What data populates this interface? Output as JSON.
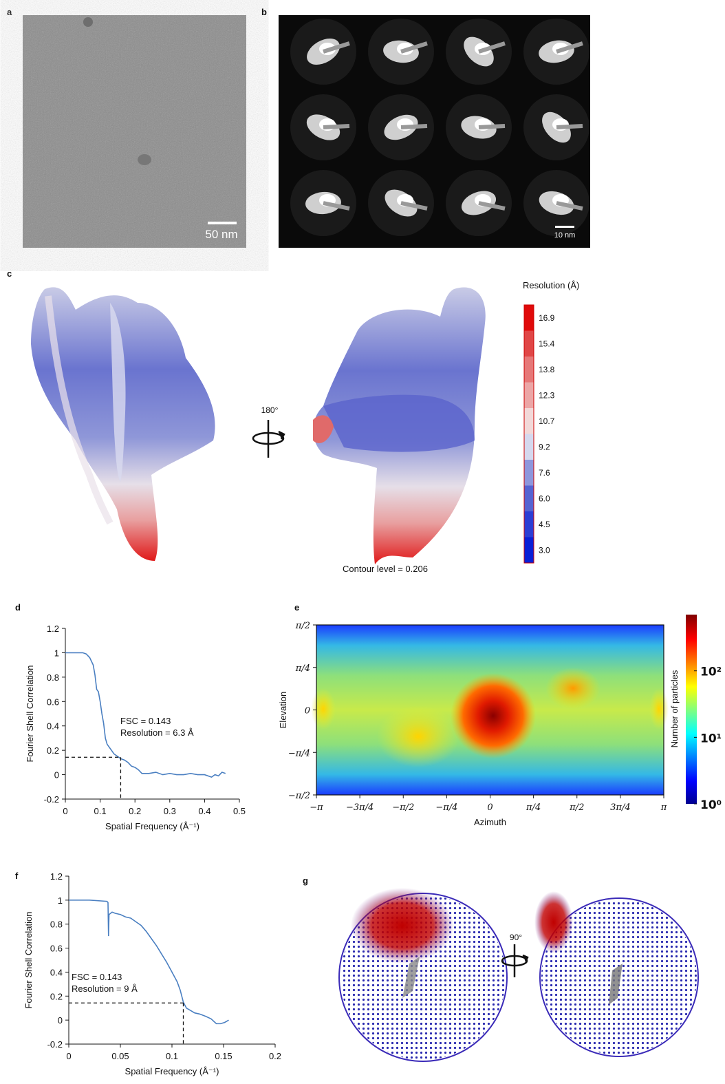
{
  "panels": {
    "a": {
      "label": "a",
      "scale_bar": "50 nm"
    },
    "b": {
      "label": "b",
      "scale_bar": "10 nm"
    },
    "c": {
      "label": "c",
      "rotation": "180°",
      "contour": "Contour level = 0.206",
      "colorbar": {
        "title": "Resolution (Å)",
        "ticks": [
          {
            "value": 3,
            "label": "3.0"
          },
          4.5,
          {
            "value": 6,
            "label": "6.0"
          },
          7.6,
          9.2,
          10.7,
          12.3,
          13.8,
          15.4,
          16.9
        ],
        "colors": [
          "#0a1fd6",
          "#2c3ed4",
          "#5563d2",
          "#8e96dc",
          "#d5d8ee",
          "#f2d8d8",
          "#eca6a6",
          "#e67878",
          "#e04646",
          "#e00a0a"
        ]
      }
    },
    "g": {
      "label": "g",
      "rotation": "90°"
    }
  },
  "chart_data": [
    {
      "type": "line",
      "label": "d",
      "ylabel": "Fourier Shell Correlation",
      "xlabel": "Spatial Frequency (Å⁻¹)",
      "color": "#4a7fc1",
      "x": [
        0,
        0.03,
        0.05,
        0.06,
        0.07,
        0.08,
        0.085,
        0.09,
        0.095,
        0.1,
        0.105,
        0.11,
        0.115,
        0.12,
        0.13,
        0.14,
        0.15,
        0.16,
        0.17,
        0.18,
        0.19,
        0.2,
        0.21,
        0.22,
        0.24,
        0.26,
        0.28,
        0.3,
        0.32,
        0.34,
        0.36,
        0.38,
        0.4,
        0.42,
        0.43,
        0.44,
        0.45,
        0.46
      ],
      "values": [
        1,
        1,
        1,
        0.99,
        0.96,
        0.9,
        0.82,
        0.7,
        0.68,
        0.6,
        0.5,
        0.42,
        0.3,
        0.25,
        0.21,
        0.17,
        0.15,
        0.13,
        0.12,
        0.1,
        0.07,
        0.06,
        0.04,
        0.01,
        0.01,
        0.02,
        0.0,
        0.01,
        0.0,
        0.0,
        0.01,
        0.0,
        0.0,
        -0.02,
        0.0,
        -0.01,
        0.02,
        0.01
      ],
      "xlim": [
        0,
        0.5
      ],
      "xticks": [
        0,
        0.1,
        0.2,
        0.3,
        0.4,
        0.5
      ],
      "ylim": [
        -0.2,
        1.2
      ],
      "yticks": [
        -0.2,
        0,
        0.2,
        0.4,
        0.6,
        0.8,
        1,
        1.2
      ],
      "threshold": 0.143,
      "resolution_x": 0.159,
      "annotations": [
        "FSC = 0.143",
        "Resolution = 6.3 Å"
      ]
    },
    {
      "type": "hexbin",
      "label": "e",
      "ylabel": "Elevation",
      "xlabel": "Azimuth",
      "xlim": [
        -3.1416,
        3.1416
      ],
      "xticks": [
        {
          "value": -3.1416,
          "label": "−π"
        },
        {
          "value": -2.3562,
          "label": "−3π/4"
        },
        {
          "value": -1.5708,
          "label": "−π/2"
        },
        {
          "value": -0.7854,
          "label": "−π/4"
        },
        0,
        {
          "value": 0.7854,
          "label": "π/4"
        },
        {
          "value": 1.5708,
          "label": "π/2"
        },
        {
          "value": 2.3562,
          "label": "3π/4"
        },
        {
          "value": 3.1416,
          "label": "π"
        }
      ],
      "ylim": [
        -1.5708,
        1.5708
      ],
      "yticks": [
        {
          "value": -1.5708,
          "label": "−π/2"
        },
        {
          "value": -0.7854,
          "label": "−π/4"
        },
        0,
        {
          "value": 0.7854,
          "label": "π/4"
        },
        {
          "value": 1.5708,
          "label": "π/2"
        }
      ],
      "colorbar": {
        "label": "Number of particles",
        "scale": "log",
        "lim": [
          1,
          700
        ],
        "ticks": [
          {
            "value": 1,
            "label": "10⁰"
          },
          {
            "value": 10,
            "label": "10¹"
          },
          {
            "value": 100,
            "label": "10²"
          }
        ]
      }
    },
    {
      "type": "line",
      "label": "f",
      "ylabel": "Fourier Shell Correlation",
      "xlabel": "Spatial Frequency (Å⁻¹)",
      "color": "#4a7fc1",
      "x": [
        0,
        0.02,
        0.037,
        0.038,
        0.0385,
        0.039,
        0.042,
        0.045,
        0.05,
        0.055,
        0.06,
        0.065,
        0.07,
        0.075,
        0.08,
        0.085,
        0.09,
        0.095,
        0.1,
        0.105,
        0.108,
        0.111,
        0.114,
        0.118,
        0.122,
        0.127,
        0.133,
        0.138,
        0.143,
        0.147,
        0.151,
        0.155
      ],
      "values": [
        1,
        1,
        0.99,
        0.98,
        0.7,
        0.88,
        0.9,
        0.89,
        0.88,
        0.86,
        0.85,
        0.82,
        0.79,
        0.74,
        0.68,
        0.62,
        0.55,
        0.48,
        0.4,
        0.32,
        0.25,
        0.15,
        0.1,
        0.08,
        0.06,
        0.05,
        0.03,
        0.01,
        -0.03,
        -0.03,
        -0.02,
        0.0
      ],
      "xlim": [
        0,
        0.2
      ],
      "xticks": [
        0,
        0.05,
        0.1,
        0.15,
        0.2
      ],
      "ylim": [
        -0.2,
        1.2
      ],
      "yticks": [
        -0.2,
        0,
        0.2,
        0.4,
        0.6,
        0.8,
        1,
        1.2
      ],
      "threshold": 0.143,
      "resolution_x": 0.111,
      "annotations": [
        "FSC = 0.143",
        "Resolution = 9 Å"
      ]
    }
  ]
}
